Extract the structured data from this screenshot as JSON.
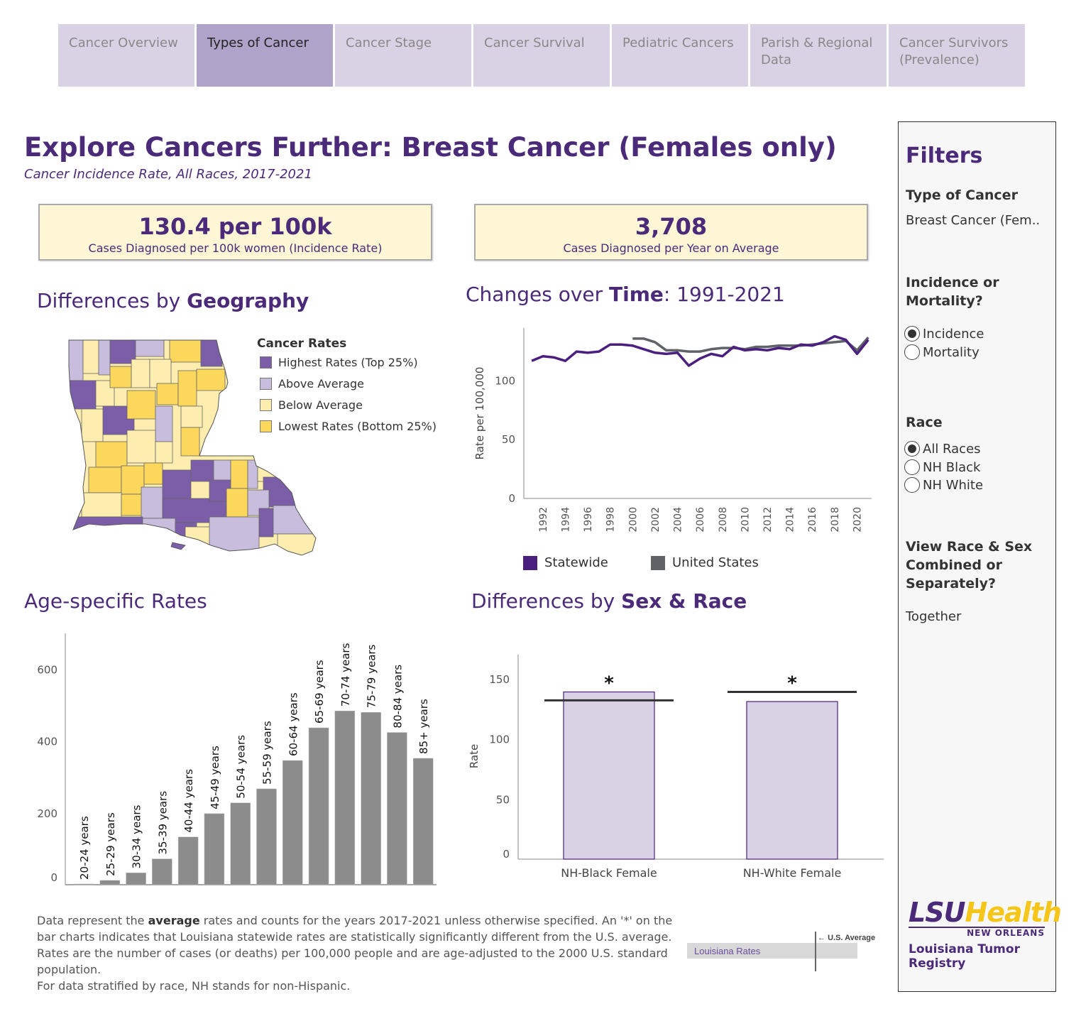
{
  "tabs": [
    {
      "label": "Cancer Overview",
      "active": false
    },
    {
      "label": "Types of Cancer",
      "active": true
    },
    {
      "label": "Cancer Stage",
      "active": false
    },
    {
      "label": "Cancer Survival",
      "active": false
    },
    {
      "label": "Pediatric Cancers",
      "active": false
    },
    {
      "label": "Parish & Regional Data",
      "active": false
    },
    {
      "label": "Cancer Survivors (Prevalence)",
      "active": false
    }
  ],
  "header": {
    "title": "Explore Cancers Further: Breast Cancer (Females only)",
    "subtitle": "Cancer Incidence Rate, All Races, 2017-2021"
  },
  "kpis": {
    "rate_value": "130.4 per 100k",
    "rate_label": "Cases Diagnosed per 100k women (Incidence Rate)",
    "count_value": "3,708",
    "count_label": "Cases Diagnosed per Year on Average"
  },
  "sections": {
    "geography_prefix": "Differences by ",
    "geography_bold": "Geography",
    "time_prefix": "Changes over ",
    "time_bold": "Time",
    "time_suffix": ": 1991-2021",
    "age_title": "Age-specific Rates",
    "sexrace_prefix": "Differences by ",
    "sexrace_bold": "Sex & Race"
  },
  "map_legend": {
    "title": "Cancer Rates",
    "items": [
      {
        "label": "Highest Rates (Top 25%)",
        "color": "#7b5ea7"
      },
      {
        "label": "Above Average",
        "color": "#c8bddc"
      },
      {
        "label": "Below Average",
        "color": "#fdeeb0"
      },
      {
        "label": "Lowest Rates (Bottom 25%)",
        "color": "#fbd75b"
      }
    ]
  },
  "time_legend": {
    "statewide": "Statewide",
    "us": "United States",
    "statewide_color": "#4b1f7f",
    "us_color": "#5f6368"
  },
  "chart_data": [
    {
      "type": "line",
      "ylabel": "Rate per 100,000",
      "ylim": [
        0,
        145
      ],
      "yticks": [
        0,
        50,
        100
      ],
      "xticks": [
        "1992",
        "1994",
        "1996",
        "1998",
        "2000",
        "2002",
        "2004",
        "2006",
        "2008",
        "2010",
        "2012",
        "2014",
        "2016",
        "2018",
        "2020"
      ],
      "x": [
        1991,
        1992,
        1993,
        1994,
        1995,
        1996,
        1997,
        1998,
        1999,
        2000,
        2001,
        2002,
        2003,
        2004,
        2005,
        2006,
        2007,
        2008,
        2009,
        2010,
        2011,
        2012,
        2013,
        2014,
        2015,
        2016,
        2017,
        2018,
        2019,
        2020,
        2021
      ],
      "series": [
        {
          "name": "Statewide",
          "values": [
            117,
            121,
            120,
            117,
            125,
            124,
            125,
            131,
            131,
            130,
            127,
            124,
            123,
            124,
            113,
            119,
            123,
            121,
            129,
            126,
            127,
            126,
            128,
            127,
            131,
            130,
            133,
            138,
            135,
            123,
            135
          ]
        },
        {
          "name": "United States",
          "values": [
            null,
            null,
            null,
            null,
            null,
            null,
            null,
            null,
            null,
            136,
            136,
            133,
            126,
            126,
            125,
            125,
            127,
            128,
            128,
            127,
            129,
            129,
            130,
            130,
            130,
            131,
            132,
            133,
            134,
            126,
            137
          ]
        }
      ]
    },
    {
      "type": "bar",
      "categories": [
        "20-24 years",
        "25-29 years",
        "30-34 years",
        "35-39 years",
        "40-44 years",
        "45-49 years",
        "50-54 years",
        "55-59 years",
        "60-64 years",
        "65-69 years",
        "70-74 years",
        "75-79 years",
        "80-84 years",
        "85+ years"
      ],
      "values": [
        2,
        12,
        33,
        72,
        133,
        198,
        228,
        267,
        346,
        437,
        484,
        480,
        424,
        352
      ],
      "ylim": [
        0,
        700
      ],
      "yticks": [
        0,
        200,
        400,
        600
      ],
      "bar_color": "#8c8c8c"
    },
    {
      "type": "bar",
      "ylabel": "Rate",
      "categories": [
        "NH-Black Female",
        "NH-White Female"
      ],
      "values": [
        139,
        131
      ],
      "us_average": [
        132,
        139
      ],
      "significant": [
        "*",
        "*"
      ],
      "ylim": [
        0,
        170
      ],
      "yticks": [
        0,
        50,
        100,
        150
      ],
      "bar_color": "#d9d2e5",
      "bar_border": "#4b1f7f"
    }
  ],
  "filters": {
    "title": "Filters",
    "type_label": "Type of Cancer",
    "type_value": "Breast Cancer (Fem..",
    "incmort_label": "Incidence or Mortality?",
    "incmort_options": [
      "Incidence",
      "Mortality"
    ],
    "incmort_selected": 0,
    "race_label": "Race",
    "race_options": [
      "All Races",
      "NH Black",
      "NH White"
    ],
    "race_selected": 0,
    "view_label": "View Race & Sex Combined or Separately?",
    "view_value": "Together"
  },
  "logo": {
    "lsu": "LSU",
    "health": "Health",
    "new_orleans": "NEW ORLEANS",
    "registry": "Louisiana Tumor Registry"
  },
  "footnote": {
    "p1_a": "Data represent the ",
    "p1_bold": "average",
    "p1_b": " rates and counts for the years 2017-2021 unless otherwise specified. An '*' on the bar charts indicates that Louisiana statewide rates are statistically significantly different from the U.S. average. Rates are the number of cases (or deaths) per 100,000 people and are age-adjusted to the 2000 U.S. standard population.",
    "p2": "For data stratified by race, NH stands for non-Hispanic."
  },
  "note_legend": {
    "us_average": "U.S. Average",
    "louisiana_rates": "Louisiana Rates"
  }
}
